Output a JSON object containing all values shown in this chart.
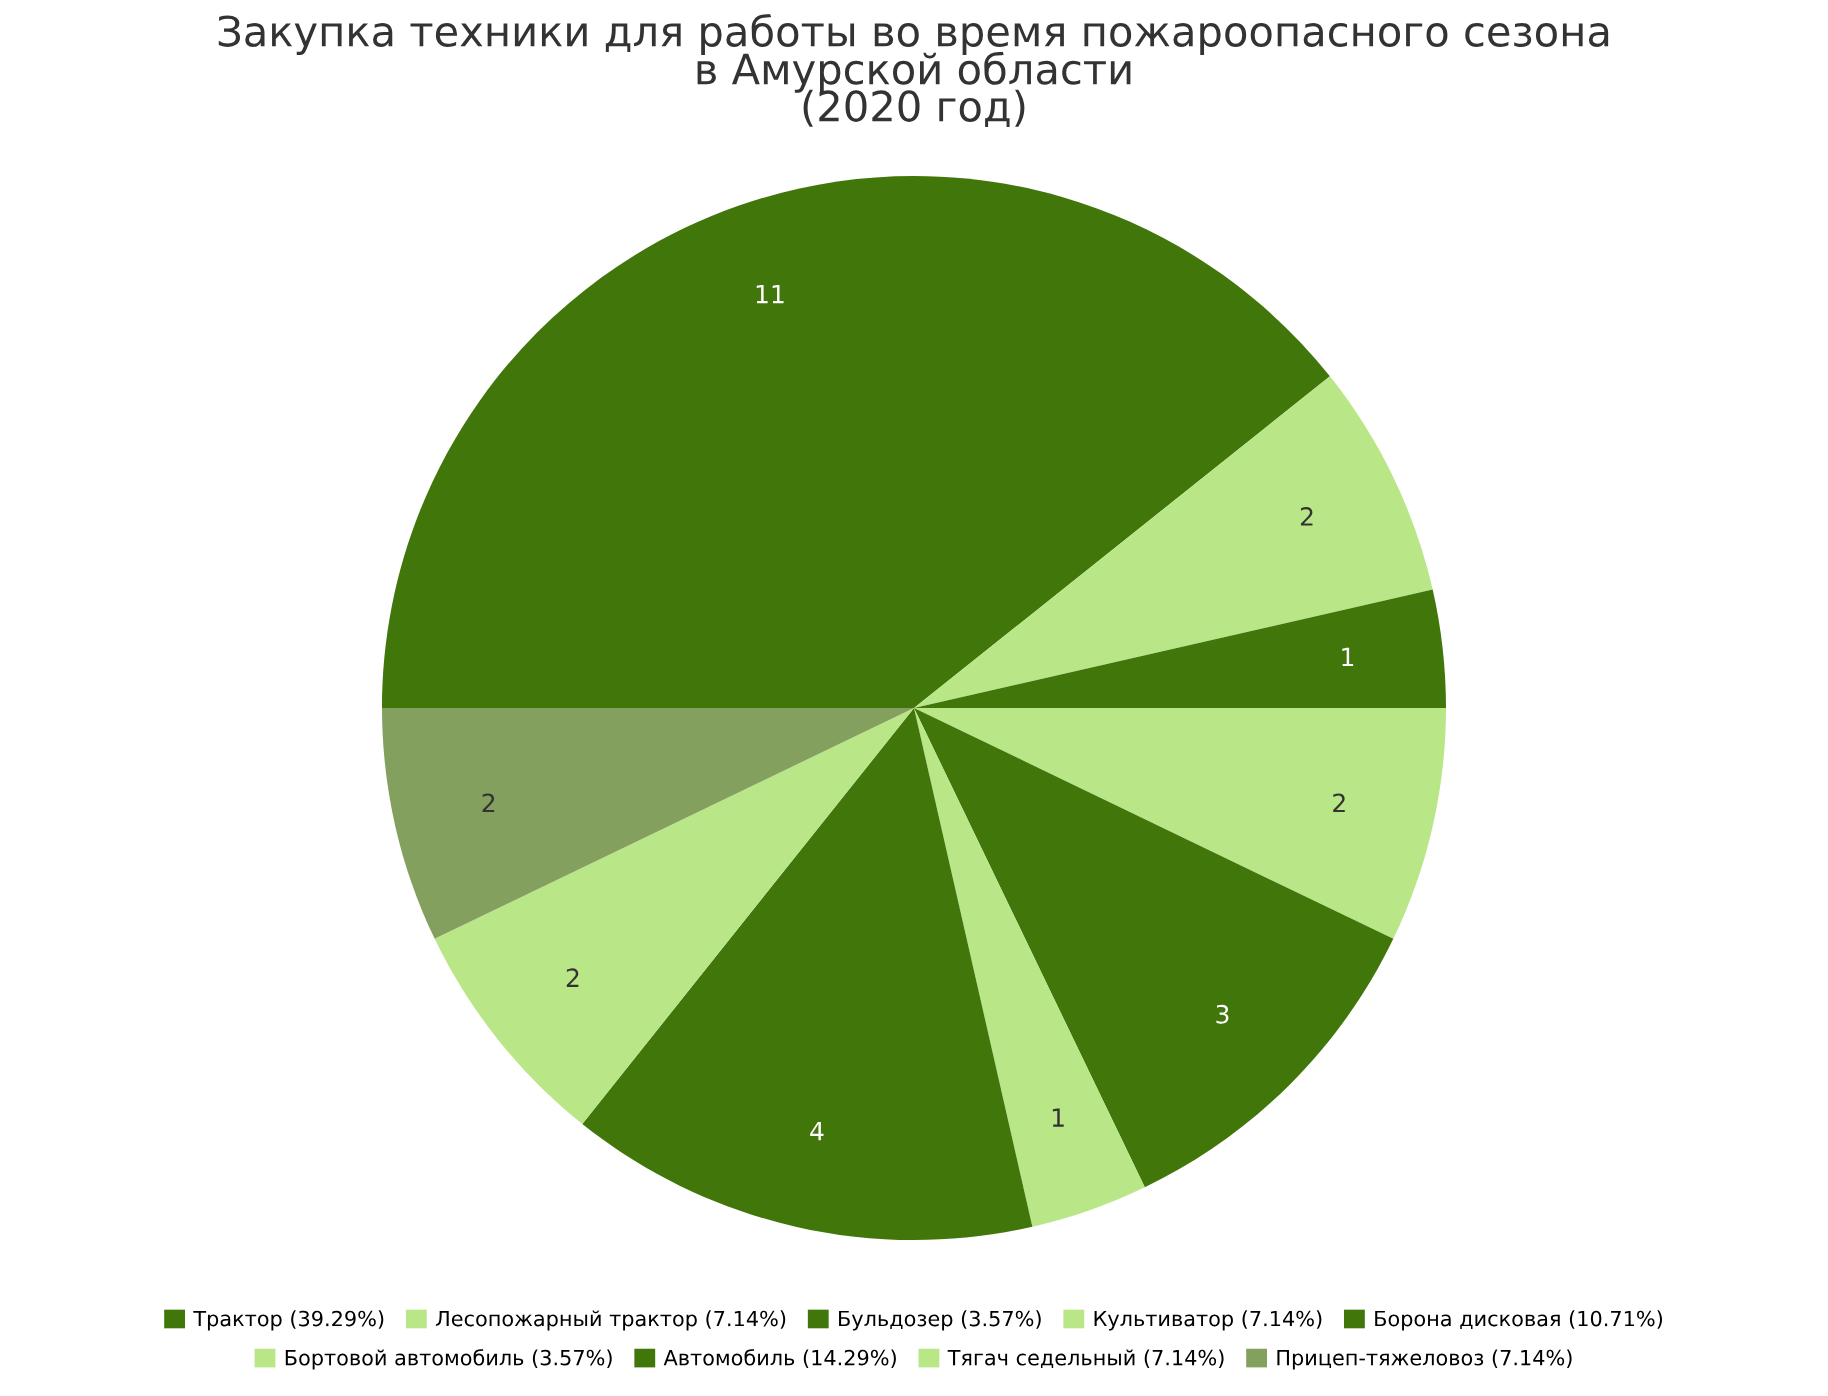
{
  "chart_data": {
    "type": "pie",
    "title": "Закупка техники для работы во время пожароопасного сезона\nв Амурской области\n(2020 год)",
    "categories": [
      "Трактор (39.29%)",
      "Лесопожарный трактор (7.14%)",
      "Бульдозер (3.57%)",
      "Культиватор (7.14%)",
      "Борона дисковая (10.71%)",
      "Бортовой автомобиль (3.57%)",
      "Автомобиль (14.29%)",
      "Тягач седельный (7.14%)",
      "Прицеп-тяжеловоз (7.14%)"
    ],
    "values": [
      11,
      2,
      1,
      2,
      3,
      1,
      4,
      2,
      2
    ],
    "colors": [
      "#41760a",
      "#b9e686",
      "#41760a",
      "#b9e686",
      "#41760a",
      "#b9e686",
      "#41760a",
      "#b9e686",
      "#84a05f"
    ],
    "data_labels": true,
    "legend": "bottom"
  }
}
